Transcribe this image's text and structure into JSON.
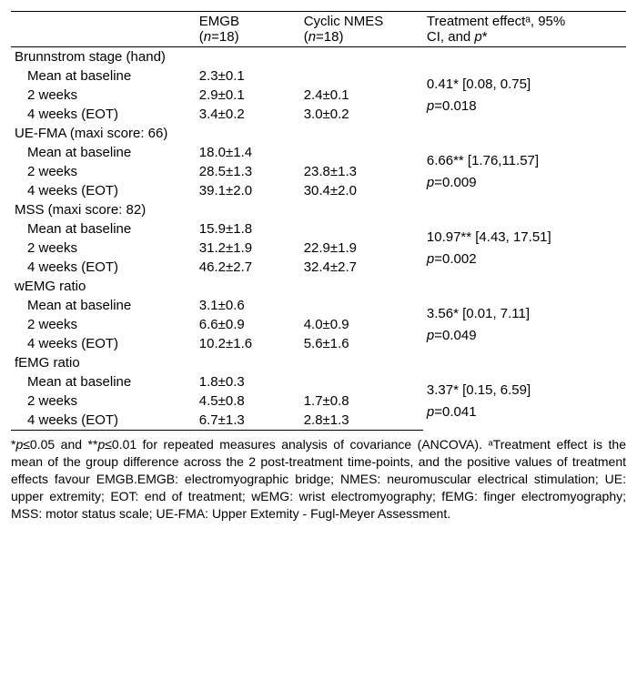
{
  "header": {
    "blank": "",
    "emgb": "EMGB",
    "emgb_n": "(n=18)",
    "nmes": "Cyclic NMES",
    "nmes_n": "(n=18)",
    "effect_line1": "Treatment effectᵃ, 95%",
    "effect_line2": "CI, and p*"
  },
  "sections": [
    {
      "title": "Brunnstrom stage (hand)",
      "rows": [
        {
          "label": "Mean at baseline",
          "emgb": "2.3±0.1",
          "nmes": ""
        },
        {
          "label": "2 weeks",
          "emgb": "2.9±0.1",
          "nmes": "2.4±0.1"
        },
        {
          "label": "4 weeks (EOT)",
          "emgb": "3.4±0.2",
          "nmes": "3.0±0.2"
        }
      ],
      "effect_line1": "0.41* [0.08, 0.75]",
      "effect_line2": "p=0.018"
    },
    {
      "title": "UE-FMA (maxi score: 66)",
      "rows": [
        {
          "label": "Mean at baseline",
          "emgb": "18.0±1.4",
          "nmes": ""
        },
        {
          "label": "2 weeks",
          "emgb": "28.5±1.3",
          "nmes": "23.8±1.3"
        },
        {
          "label": "4 weeks (EOT)",
          "emgb": "39.1±2.0",
          "nmes": "30.4±2.0"
        }
      ],
      "effect_line1": "6.66** [1.76,11.57]",
      "effect_line2": "p=0.009"
    },
    {
      "title": "MSS (maxi score: 82)",
      "rows": [
        {
          "label": "Mean at baseline",
          "emgb": "15.9±1.8",
          "nmes": ""
        },
        {
          "label": "2 weeks",
          "emgb": "31.2±1.9",
          "nmes": "22.9±1.9"
        },
        {
          "label": "4 weeks (EOT)",
          "emgb": "46.2±2.7",
          "nmes": "32.4±2.7"
        }
      ],
      "effect_line1": "10.97** [4.43, 17.51]",
      "effect_line2": "p=0.002"
    },
    {
      "title": "wEMG ratio",
      "rows": [
        {
          "label": "Mean at baseline",
          "emgb": "3.1±0.6",
          "nmes": ""
        },
        {
          "label": "2 weeks",
          "emgb": "6.6±0.9",
          "nmes": "4.0±0.9"
        },
        {
          "label": "4 weeks (EOT)",
          "emgb": "10.2±1.6",
          "nmes": "5.6±1.6"
        }
      ],
      "effect_line1": "3.56* [0.01, 7.11]",
      "effect_line2": "p=0.049"
    },
    {
      "title": "fEMG ratio",
      "rows": [
        {
          "label": "Mean at baseline",
          "emgb": "1.8±0.3",
          "nmes": ""
        },
        {
          "label": "2 weeks",
          "emgb": "4.5±0.8",
          "nmes": "1.7±0.8"
        },
        {
          "label": "4 weeks (EOT)",
          "emgb": "6.7±1.3",
          "nmes": "2.8±1.3"
        }
      ],
      "effect_line1": "3.37* [0.15, 6.59]",
      "effect_line2": "p=0.041"
    }
  ],
  "footnote": "*p≤0.05 and **p≤0.01 for repeated measures analysis of covariance (ANCOVA). ᵃTreatment effect is the mean of the group difference across the 2 post-treatment time-points, and the positive values of treatment effects favour EMGB.EMGB: electromyographic bridge; NMES: neuromuscular electrical stimulation; UE: upper extremity; EOT: end of treatment; wEMG: wrist electromyography; fEMG: finger electromyography; MSS: motor status scale; UE-FMA: Upper Extemity - Fugl-Meyer Assessment.",
  "layout": {
    "col_widths": [
      "30%",
      "17%",
      "20%",
      "33%"
    ]
  }
}
